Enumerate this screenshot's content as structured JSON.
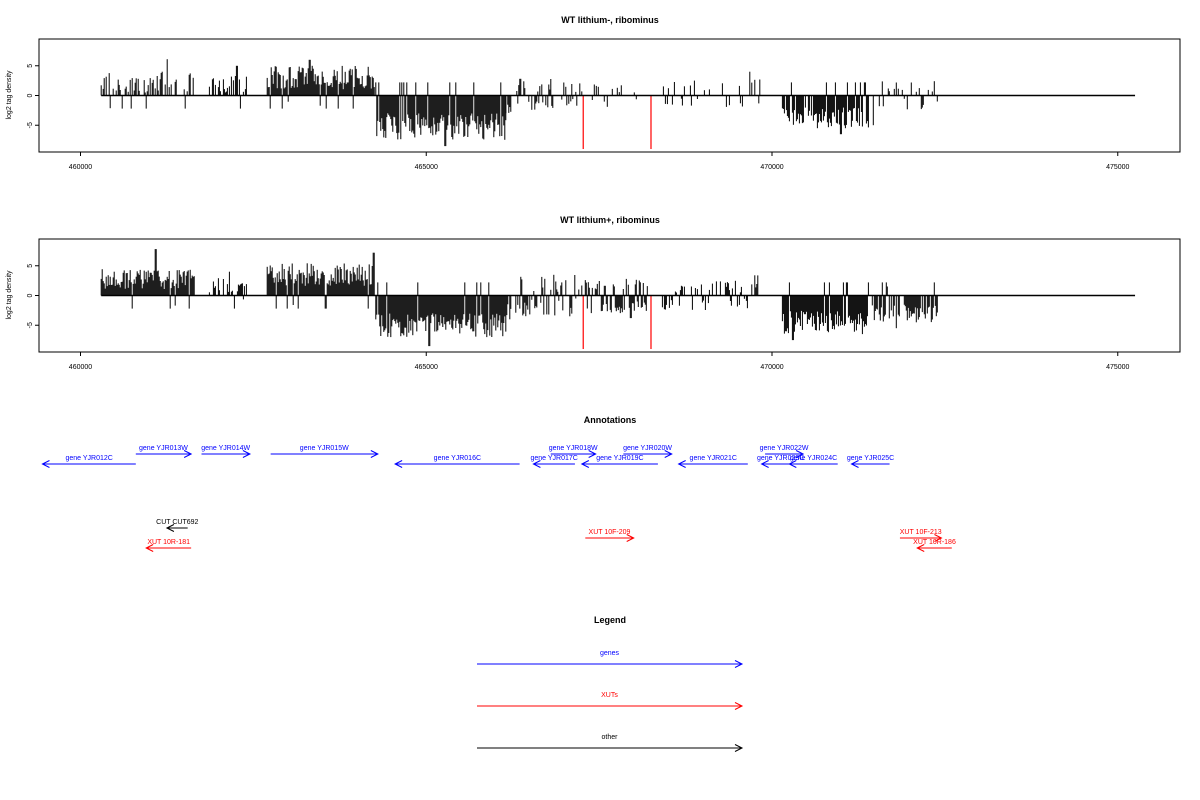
{
  "chart_data": [
    {
      "type": "bar",
      "title": "WT lithium-, ribominus",
      "ylabel": "log2 tag density",
      "xlim": [
        459400,
        475900
      ],
      "ylim": [
        -9.5,
        9.5
      ],
      "x_ticks": [
        460000,
        465000,
        470000,
        475000
      ],
      "y_ticks": [
        5,
        0,
        -5
      ],
      "baseline": {
        "from": 460300,
        "to": 475250
      },
      "tracks": [
        {
          "from": 460300,
          "to": 461650,
          "sign": 1,
          "min": 0.5,
          "max": 4.0,
          "peak": 6.1,
          "density": 0.6
        },
        {
          "from": 461850,
          "to": 462400,
          "sign": 1,
          "min": 0.5,
          "max": 3.5,
          "peak": 5.0,
          "density": 0.45
        },
        {
          "from": 462700,
          "to": 464250,
          "sign": 1,
          "min": 1.0,
          "max": 5.0,
          "peak": 6.0,
          "density": 1.0
        },
        {
          "from": 464270,
          "to": 466150,
          "sign": -1,
          "min": 3.0,
          "max": 7.5,
          "peak": 8.5,
          "density": 1.0
        },
        {
          "from": 466150,
          "to": 467250,
          "sign": 0,
          "min": 0.5,
          "max": 3.0,
          "peak": 2.8,
          "density": 0.35
        },
        {
          "from": 467300,
          "to": 468200,
          "sign": 0,
          "min": 0.5,
          "max": 2.5,
          "peak": 3.2,
          "density": 0.3
        },
        {
          "from": 468400,
          "to": 469650,
          "sign": 0,
          "min": 0.5,
          "max": 2.5,
          "peak": 2.5,
          "density": 0.25
        },
        {
          "from": 469650,
          "to": 469850,
          "sign": 1,
          "min": 1.0,
          "max": 3.5,
          "peak": 4.0,
          "density": 0.5
        },
        {
          "from": 470150,
          "to": 471400,
          "sign": -1,
          "min": 2.0,
          "max": 5.5,
          "peak": 6.5,
          "density": 0.85
        },
        {
          "from": 471450,
          "to": 472400,
          "sign": 0,
          "min": 0.5,
          "max": 2.5,
          "peak": 5.0,
          "density": 0.35
        }
      ],
      "highlights": [
        {
          "x": 467270,
          "value": -9.0,
          "color": "#ff0000"
        },
        {
          "x": 468250,
          "value": -9.0,
          "color": "#ff0000"
        }
      ],
      "bar_color": "#000000",
      "grid": false
    },
    {
      "type": "bar",
      "title": "WT lithium+, ribominus",
      "ylabel": "log2 tag density",
      "xlim": [
        459400,
        475900
      ],
      "ylim": [
        -9.5,
        9.5
      ],
      "x_ticks": [
        460000,
        465000,
        470000,
        475000
      ],
      "y_ticks": [
        5,
        0,
        -5
      ],
      "baseline": {
        "from": 460300,
        "to": 475250
      },
      "tracks": [
        {
          "from": 460300,
          "to": 461650,
          "sign": 1,
          "min": 1.0,
          "max": 4.5,
          "peak": 7.8,
          "density": 1.0
        },
        {
          "from": 461850,
          "to": 462400,
          "sign": 1,
          "min": 0.5,
          "max": 3.0,
          "peak": 4.0,
          "density": 0.6
        },
        {
          "from": 462700,
          "to": 464250,
          "sign": 1,
          "min": 1.5,
          "max": 5.5,
          "peak": 7.2,
          "density": 1.0
        },
        {
          "from": 464270,
          "to": 466150,
          "sign": -1,
          "min": 3.0,
          "max": 7.0,
          "peak": 8.5,
          "density": 1.0
        },
        {
          "from": 466150,
          "to": 467250,
          "sign": 0,
          "min": 0.5,
          "max": 3.5,
          "peak": 4.0,
          "density": 0.6
        },
        {
          "from": 467300,
          "to": 468200,
          "sign": 0,
          "min": 1.0,
          "max": 3.0,
          "peak": 3.8,
          "density": 0.85
        },
        {
          "from": 468400,
          "to": 469650,
          "sign": 0,
          "min": 0.5,
          "max": 2.5,
          "peak": 3.0,
          "density": 0.5
        },
        {
          "from": 469650,
          "to": 469850,
          "sign": 1,
          "min": 1.0,
          "max": 3.5,
          "peak": 4.0,
          "density": 0.6
        },
        {
          "from": 470150,
          "to": 471400,
          "sign": -1,
          "min": 2.5,
          "max": 6.5,
          "peak": 7.5,
          "density": 1.0
        },
        {
          "from": 471450,
          "to": 472400,
          "sign": -1,
          "min": 1.5,
          "max": 4.5,
          "peak": 5.5,
          "density": 0.8
        }
      ],
      "highlights": [
        {
          "x": 467270,
          "value": -9.0,
          "color": "#ff0000"
        },
        {
          "x": 468250,
          "value": -9.0,
          "color": "#ff0000"
        }
      ],
      "bar_color": "#000000",
      "grid": false
    }
  ],
  "annotations": {
    "title": "Annotations",
    "colors": {
      "gene": "#0000ff",
      "xut": "#ff0000",
      "other": "#000000"
    },
    "features": [
      {
        "label": "gene YJR012C",
        "kind": "gene",
        "strand": "-",
        "start": 459450,
        "end": 460800,
        "row": 2
      },
      {
        "label": "gene YJR013W",
        "kind": "gene",
        "strand": "+",
        "start": 460800,
        "end": 461600,
        "row": 1
      },
      {
        "label": "gene YJR014W",
        "kind": "gene",
        "strand": "+",
        "start": 461750,
        "end": 462450,
        "row": 1
      },
      {
        "label": "gene YJR015W",
        "kind": "gene",
        "strand": "+",
        "start": 462750,
        "end": 464300,
        "row": 1
      },
      {
        "label": "gene YJR016C",
        "kind": "gene",
        "strand": "-",
        "start": 464550,
        "end": 466350,
        "row": 2
      },
      {
        "label": "gene YJR017C",
        "kind": "gene",
        "strand": "-",
        "start": 466550,
        "end": 467150,
        "row": 2
      },
      {
        "label": "gene YJR018W",
        "kind": "gene",
        "strand": "+",
        "start": 466800,
        "end": 467450,
        "row": 1
      },
      {
        "label": "gene YJR019C",
        "kind": "gene",
        "strand": "-",
        "start": 467250,
        "end": 468350,
        "row": 2
      },
      {
        "label": "gene YJR020W",
        "kind": "gene",
        "strand": "+",
        "start": 467850,
        "end": 468550,
        "row": 1
      },
      {
        "label": "gene YJR021C",
        "kind": "gene",
        "strand": "-",
        "start": 468650,
        "end": 469650,
        "row": 2
      },
      {
        "label": "gene YJR022W",
        "kind": "gene",
        "strand": "+",
        "start": 469900,
        "end": 470450,
        "row": 1
      },
      {
        "label": "gene YJR023C",
        "kind": "gene",
        "strand": "-",
        "start": 469850,
        "end": 470400,
        "row": 2
      },
      {
        "label": "gene YJR024C",
        "kind": "gene",
        "strand": "-",
        "start": 470250,
        "end": 470950,
        "row": 2
      },
      {
        "label": "gene YJR025C",
        "kind": "gene",
        "strand": "-",
        "start": 471150,
        "end": 471700,
        "row": 2
      },
      {
        "label": "CUT CUT692",
        "kind": "other",
        "strand": "-",
        "start": 461250,
        "end": 461550,
        "row": 3
      },
      {
        "label": "XUT 10R-181",
        "kind": "xut",
        "strand": "-",
        "start": 460950,
        "end": 461600,
        "row": 4
      },
      {
        "label": "XUT 10F-209",
        "kind": "xut",
        "strand": "+",
        "start": 467300,
        "end": 468000,
        "row": 5
      },
      {
        "label": "XUT 10F-213",
        "kind": "xut",
        "strand": "+",
        "start": 471850,
        "end": 472450,
        "row": 5
      },
      {
        "label": "XUT 10R-186",
        "kind": "xut",
        "strand": "-",
        "start": 472100,
        "end": 472600,
        "row": 4
      }
    ]
  },
  "legend": {
    "title": "Legend",
    "items": [
      {
        "label": "genes",
        "color": "#0000ff"
      },
      {
        "label": "XUTs",
        "color": "#ff0000"
      },
      {
        "label": "other",
        "color": "#000000"
      }
    ]
  }
}
